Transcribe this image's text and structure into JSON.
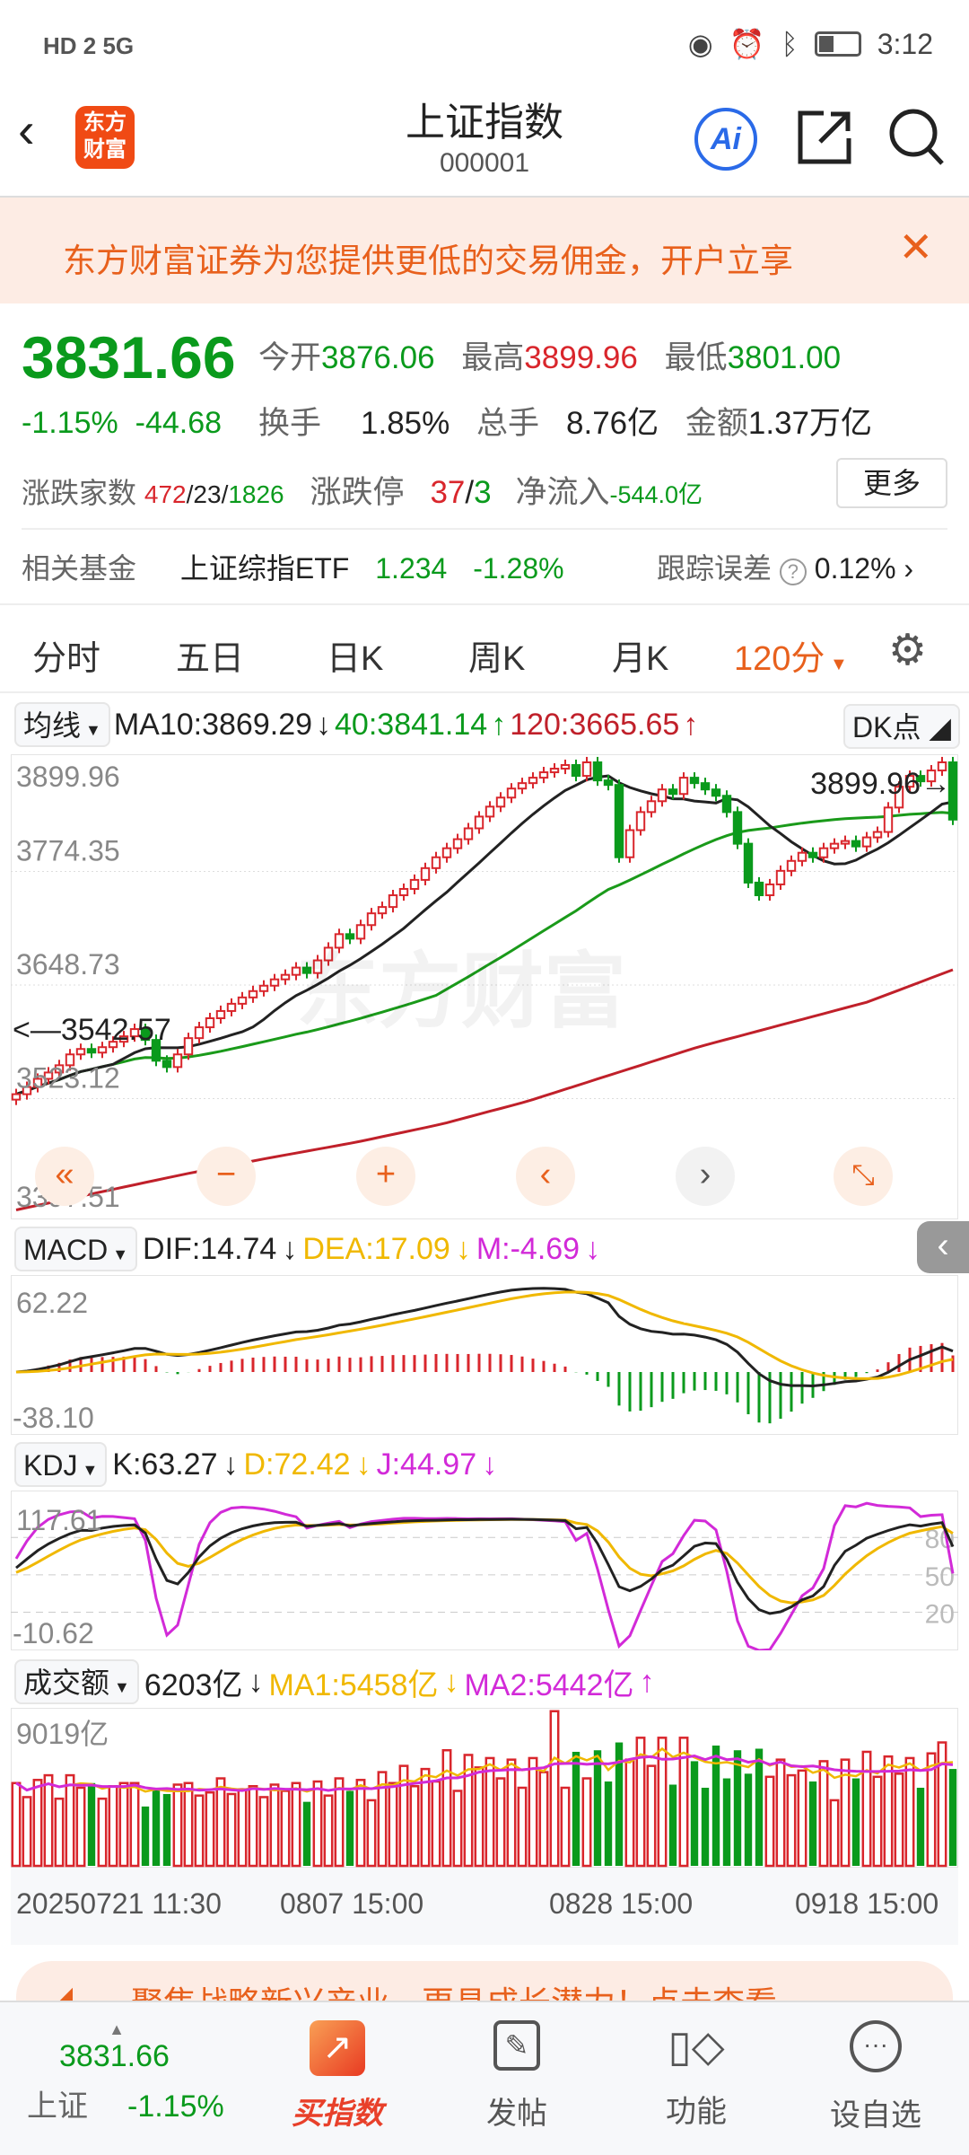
{
  "status": {
    "left": "HD 2  5G",
    "time": "3:12"
  },
  "header": {
    "logo": "东方财富",
    "title": "上证指数",
    "code": "000001",
    "ai_label": "Ai"
  },
  "promo": {
    "text": "东方财富证券为您提供更低的交易佣金，开户立享"
  },
  "quote": {
    "price": "3831.66",
    "change_pct": "-1.15%",
    "change": "-44.68",
    "open_label": "今开",
    "open": "3876.06",
    "high_label": "最高",
    "high": "3899.96",
    "low_label": "最低",
    "low": "3801.00",
    "turnover_label": "换手",
    "turnover": "1.85%",
    "volume_label": "总手",
    "volume": "8.76亿",
    "amount_label": "金额",
    "amount": "1.37万亿",
    "breadth_label": "涨跌家数",
    "up": "472",
    "flat": "23",
    "down": "1826",
    "limit_label": "涨跌停",
    "limit_up": "37",
    "limit_down": "3",
    "flow_label": "净流入",
    "flow": "-544.0亿",
    "more": "更多"
  },
  "fund": {
    "label": "相关基金",
    "name": "上证综指ETF",
    "price": "1.234",
    "pct": "-1.28%",
    "err_label": "跟踪误差",
    "err": "0.12%"
  },
  "tabs": [
    "分时",
    "五日",
    "日K",
    "周K",
    "月K",
    "120分"
  ],
  "ma_legend": {
    "selector": "均线",
    "ma10": "MA10:3869.29",
    "ma40": "40:3841.14",
    "ma120": "120:3665.65",
    "dk": "DK点"
  },
  "macd_legend": {
    "selector": "MACD",
    "dif": "DIF:14.74",
    "dea": "DEA:17.09",
    "m": "M:-4.69"
  },
  "kdj_legend": {
    "selector": "KDJ",
    "k": "K:63.27",
    "d": "D:72.42",
    "j": "J:44.97"
  },
  "vol_legend": {
    "selector": "成交额",
    "v": "6203亿",
    "ma1": "MA1:5458亿",
    "ma2": "MA2:5442亿"
  },
  "watermark": "东方财富",
  "chart_data": {
    "type": "candlestick",
    "price_ylim": [
      3397.51,
      3899.96
    ],
    "price_ticks": [
      "3899.96",
      "3774.35",
      "3648.73",
      "3523.12",
      "3397.51"
    ],
    "high_marker": "3899.96",
    "low_marker": "3542.57",
    "closes": [
      3528,
      3536,
      3545,
      3552,
      3560,
      3572,
      3578,
      3574,
      3580,
      3586,
      3592,
      3600,
      3588,
      3565,
      3558,
      3572,
      3590,
      3602,
      3612,
      3620,
      3628,
      3635,
      3642,
      3648,
      3655,
      3660,
      3668,
      3662,
      3676,
      3690,
      3705,
      3700,
      3715,
      3728,
      3735,
      3748,
      3755,
      3765,
      3778,
      3790,
      3800,
      3810,
      3822,
      3835,
      3846,
      3856,
      3866,
      3872,
      3878,
      3884,
      3888,
      3892,
      3880,
      3895,
      3875,
      3870,
      3790,
      3820,
      3840,
      3852,
      3865,
      3860,
      3878,
      3872,
      3865,
      3858,
      3840,
      3805,
      3762,
      3748,
      3760,
      3775,
      3786,
      3795,
      3790,
      3800,
      3805,
      3808,
      3802,
      3812,
      3818,
      3845,
      3868,
      3880,
      3874,
      3886,
      3895,
      3831.66
    ],
    "ma120": [
      3400,
      3420,
      3440,
      3458,
      3475,
      3495,
      3520,
      3550,
      3580,
      3605,
      3630,
      3665.65
    ],
    "macd_ylim": [
      -38.1,
      62.22
    ],
    "macd_ticks": [
      "62.22",
      "-38.10"
    ],
    "kdj_ylim": [
      -10.62,
      117.61
    ],
    "kdj_ticks": [
      "117.61",
      "-10.62"
    ],
    "kdj_refs": [
      "80",
      "50",
      "20"
    ],
    "vol_ymax": 10000,
    "vol_tick": "9019亿",
    "volumes": [
      5300,
      4400,
      5500,
      5800,
      4300,
      5800,
      5000,
      5300,
      4300,
      5100,
      5300,
      5300,
      3800,
      5000,
      4600,
      5200,
      5300,
      4500,
      4700,
      5600,
      4600,
      4900,
      5100,
      4400,
      5200,
      4800,
      5300,
      4100,
      5400,
      4500,
      5600,
      4800,
      5500,
      4200,
      6000,
      5300,
      6400,
      5100,
      6200,
      5400,
      7400,
      4800,
      7100,
      6300,
      6900,
      5600,
      6800,
      5000,
      6900,
      6000,
      9900,
      5000,
      7300,
      5600,
      7400,
      5400,
      7900,
      6800,
      8200,
      6400,
      8200,
      5200,
      8200,
      6700,
      5000,
      7700,
      5600,
      7400,
      5900,
      7500,
      5700,
      6800,
      5800,
      6100,
      5400,
      6700,
      4200,
      6800,
      5600,
      7300,
      5700,
      7000,
      5900,
      6900,
      5000,
      7200,
      7900,
      6203
    ],
    "x_labels": [
      "20250721 11:30",
      "0807 15:00",
      "0828 15:00",
      "0918 15:00"
    ]
  },
  "colors": {
    "up": "#d9262c",
    "down": "#0a9a1c",
    "accent": "#e8601c",
    "ma10": "#222222",
    "ma40": "#1a9a1a",
    "ma120": "#c0202a",
    "yellow": "#f0b800",
    "magenta": "#d22ad8"
  },
  "nav": {
    "index_price": "3831.66",
    "index_name": "上证",
    "index_pct": "-1.15%",
    "items": [
      "买指数",
      "发帖",
      "功能",
      "设自选"
    ]
  },
  "bottom_promo": {
    "text": "聚焦战略新兴产业，更具成长潜力！点击查看"
  }
}
